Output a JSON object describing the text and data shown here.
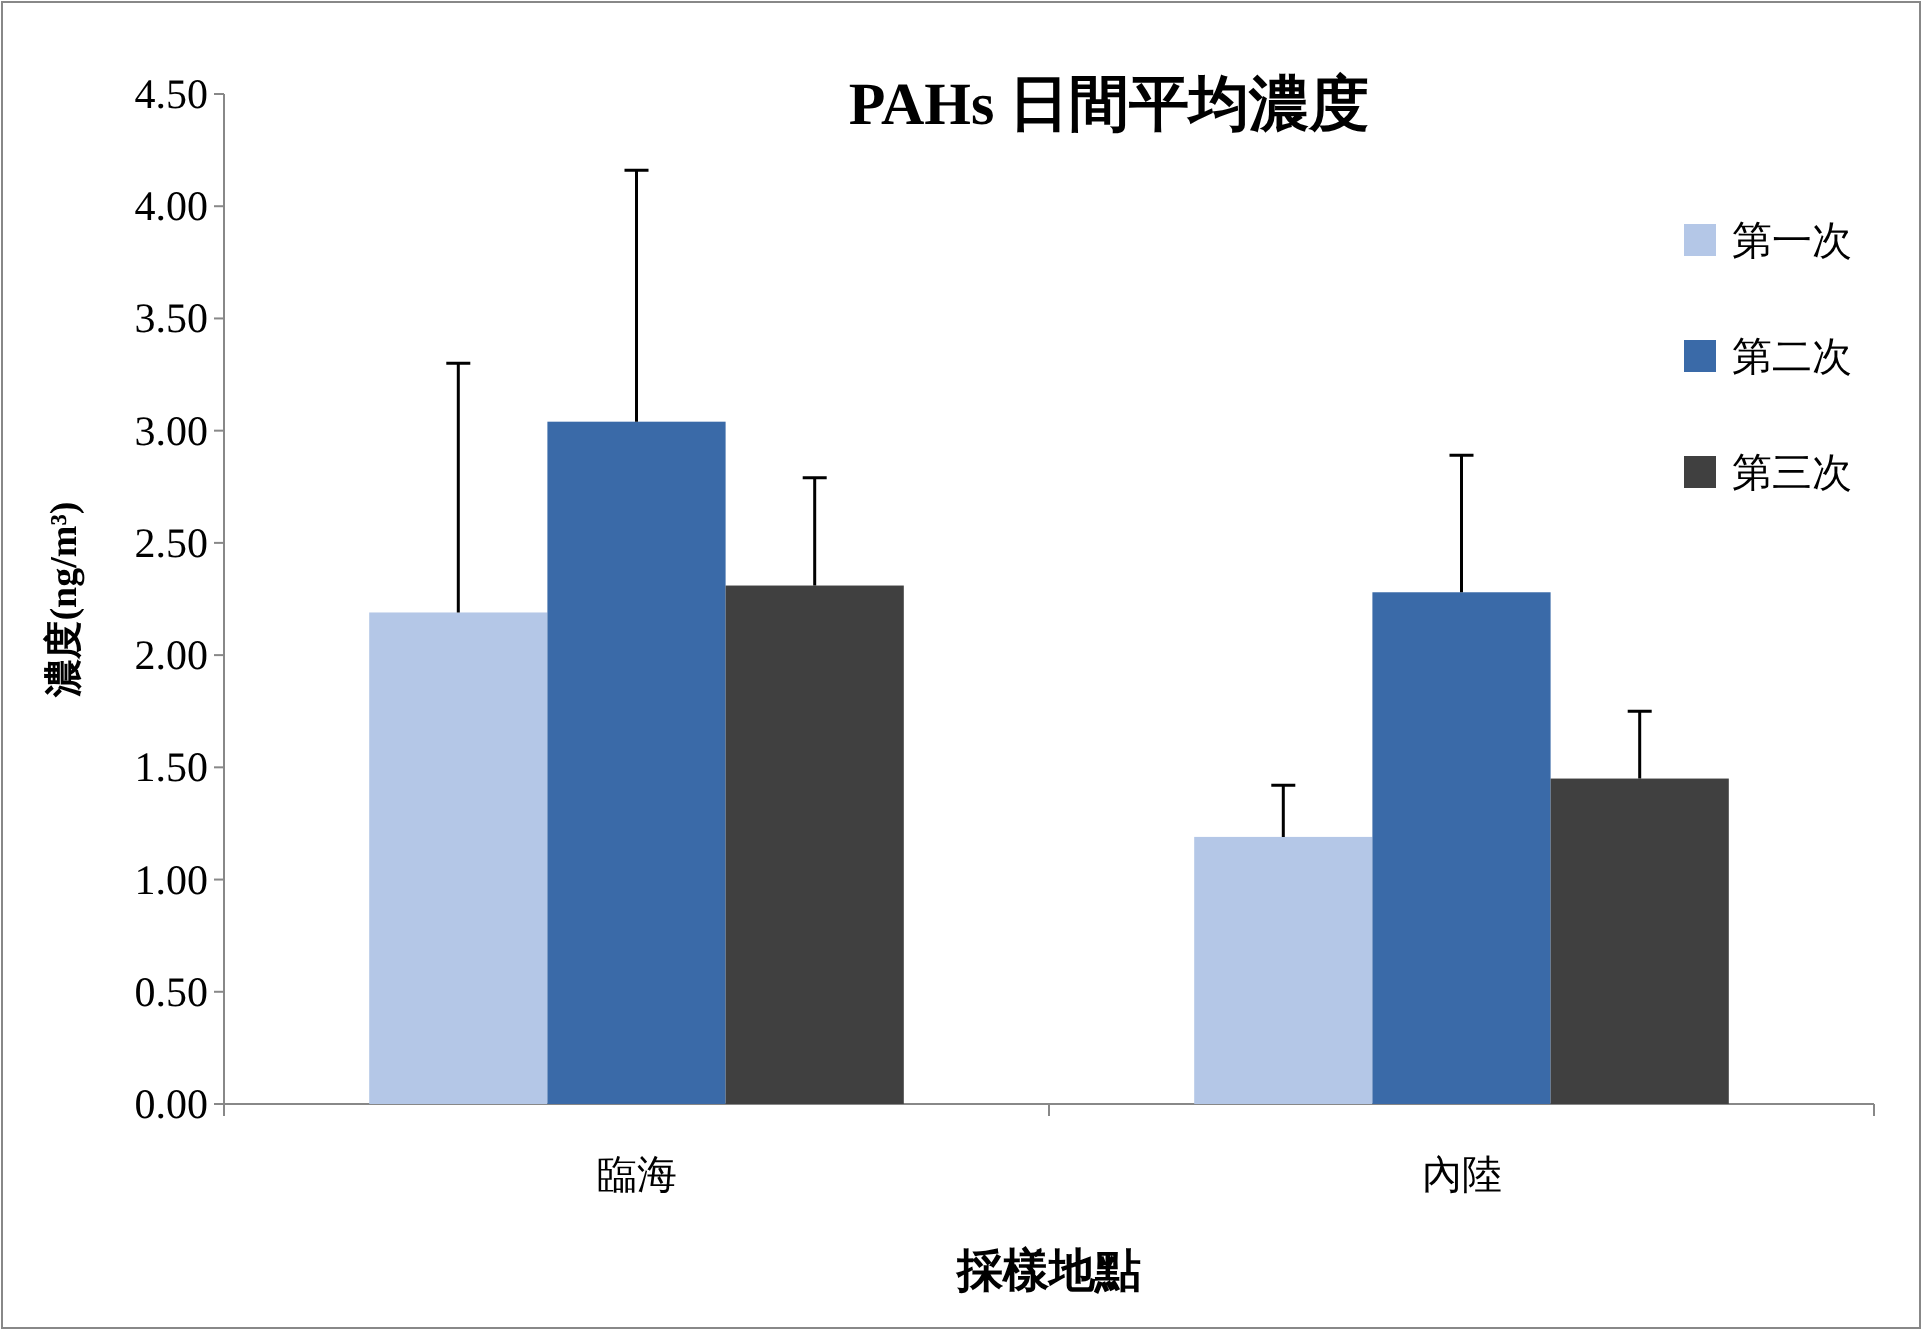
{
  "chart_data": {
    "type": "bar",
    "title": "PAHs 日間平均濃度",
    "xlabel": "採樣地點",
    "ylabel": "濃度(ng/m³)",
    "categories": [
      "臨海",
      "內陸"
    ],
    "series": [
      {
        "name": "第一次",
        "color": "#b4c7e7",
        "values": [
          2.19,
          1.19
        ],
        "errors": [
          [
            2.19,
            3.3
          ],
          [
            1.19,
            1.42
          ]
        ]
      },
      {
        "name": "第二次",
        "color": "#3a6aa8",
        "values": [
          3.04,
          2.28
        ],
        "errors": [
          [
            3.04,
            4.16
          ],
          [
            2.28,
            2.89
          ]
        ]
      },
      {
        "name": "第三次",
        "color": "#404040",
        "values": [
          2.31,
          1.45
        ],
        "errors": [
          [
            2.31,
            2.79
          ],
          [
            1.45,
            1.75
          ]
        ]
      }
    ],
    "ylim": [
      0,
      4.5
    ],
    "yticks": [
      {
        "value": 0,
        "label": "0.00"
      },
      {
        "value": 0.5,
        "label": "0.50"
      },
      {
        "value": 1,
        "label": "1.00"
      },
      {
        "value": 1.5,
        "label": "1.50"
      },
      {
        "value": 2,
        "label": "2.00"
      },
      {
        "value": 2.5,
        "label": "2.50"
      },
      {
        "value": 3,
        "label": "3.00"
      },
      {
        "value": 3.5,
        "label": "3.50"
      },
      {
        "value": 4,
        "label": "4.00"
      },
      {
        "value": 4.5,
        "label": "4.50"
      }
    ],
    "grid": false,
    "legend": "top right"
  }
}
